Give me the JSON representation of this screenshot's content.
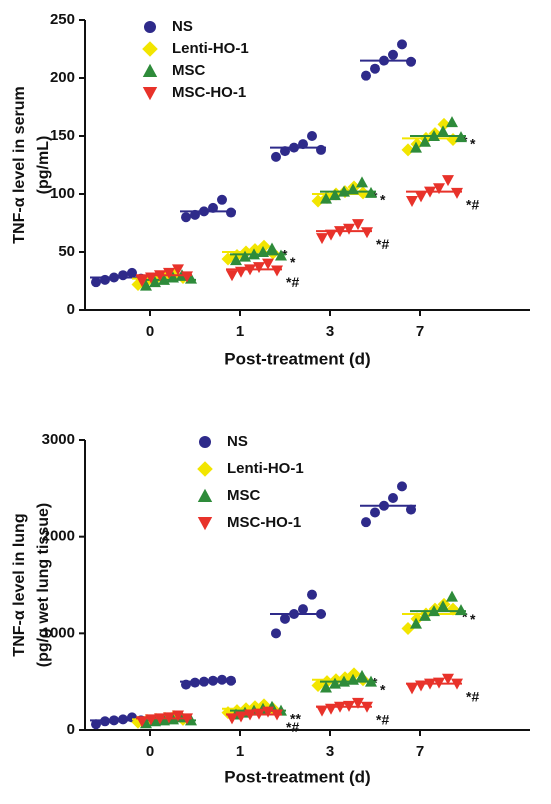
{
  "chart_data": [
    {
      "type": "dot",
      "xlabel": "Post-treatment (d)",
      "ylabel": [
        "TNF-α level in serum",
        "(pg/mL)"
      ],
      "categories": [
        "0",
        "1",
        "3",
        "7"
      ],
      "ylim": [
        0,
        250
      ],
      "yticks": [
        0,
        50,
        100,
        150,
        200,
        250
      ],
      "series": [
        {
          "name": "NS",
          "color": "#2e2a8a",
          "marker": "circle",
          "values": [
            28,
            85,
            140,
            215
          ],
          "points": [
            [
              24,
              26,
              28,
              30,
              32,
              27
            ],
            [
              80,
              82,
              85,
              88,
              95,
              84
            ],
            [
              132,
              137,
              140,
              143,
              150,
              138
            ],
            [
              202,
              208,
              215,
              220,
              229,
              214
            ]
          ],
          "annotations": [
            null,
            null,
            null,
            null
          ]
        },
        {
          "name": "Lenti-HO-1",
          "color": "#f2e500",
          "marker": "diamond",
          "values": [
            27,
            50,
            100,
            148
          ],
          "points": [
            [
              22,
              25,
              27,
              29,
              31,
              28
            ],
            [
              44,
              47,
              50,
              52,
              55,
              49
            ],
            [
              94,
              97,
              100,
              102,
              106,
              101
            ],
            [
              138,
              143,
              148,
              152,
              160,
              147
            ]
          ],
          "annotations": [
            null,
            "*",
            "*",
            "*"
          ]
        },
        {
          "name": "MSC",
          "color": "#2e8b3a",
          "marker": "triangle",
          "values": [
            26,
            48,
            102,
            150
          ],
          "points": [
            [
              21,
              24,
              26,
              28,
              30,
              27
            ],
            [
              43,
              46,
              48,
              50,
              53,
              47
            ],
            [
              96,
              99,
              102,
              104,
              110,
              101
            ],
            [
              140,
              145,
              150,
              154,
              162,
              149
            ]
          ],
          "annotations": [
            null,
            "*",
            "*",
            "*"
          ]
        },
        {
          "name": "MSC-HO-1",
          "color": "#e8322a",
          "marker": "triangle-down",
          "values": [
            30,
            35,
            68,
            102
          ],
          "points": [
            [
              25,
              28,
              30,
              32,
              35,
              29
            ],
            [
              30,
              33,
              35,
              37,
              40,
              34
            ],
            [
              62,
              65,
              68,
              70,
              74,
              67
            ],
            [
              94,
              98,
              102,
              105,
              112,
              101
            ]
          ],
          "annotations": [
            null,
            "*#",
            "*#",
            "*#"
          ]
        }
      ]
    },
    {
      "type": "dot",
      "xlabel": "Post-treatment (d)",
      "ylabel": [
        "TNF-α level in lung",
        "(pg/g wet lung tissue)"
      ],
      "categories": [
        "0",
        "1",
        "3",
        "7"
      ],
      "ylim": [
        0,
        3000
      ],
      "yticks": [
        0,
        1000,
        2000,
        3000
      ],
      "series": [
        {
          "name": "NS",
          "color": "#2e2a8a",
          "marker": "circle",
          "values": [
            100,
            500,
            1200,
            2320
          ],
          "points": [
            [
              60,
              90,
              100,
              110,
              130,
              100
            ],
            [
              470,
              490,
              500,
              510,
              520,
              510
            ],
            [
              1000,
              1150,
              1200,
              1250,
              1400,
              1200
            ],
            [
              2150,
              2250,
              2320,
              2400,
              2520,
              2280
            ]
          ],
          "annotations": [
            null,
            null,
            null,
            null
          ]
        },
        {
          "name": "Lenti-HO-1",
          "color": "#f2e500",
          "marker": "diamond",
          "values": [
            110,
            220,
            520,
            1200
          ],
          "points": [
            [
              80,
              100,
              110,
              120,
              140,
              110
            ],
            [
              180,
              200,
              220,
              240,
              260,
              220
            ],
            [
              460,
              500,
              520,
              540,
              580,
              520
            ],
            [
              1050,
              1150,
              1200,
              1250,
              1300,
              1250
            ]
          ],
          "annotations": [
            null,
            null,
            "*",
            "*"
          ]
        },
        {
          "name": "MSC",
          "color": "#2e8b3a",
          "marker": "triangle",
          "values": [
            100,
            200,
            500,
            1230
          ],
          "points": [
            [
              70,
              90,
              100,
              110,
              130,
              100
            ],
            [
              160,
              180,
              200,
              220,
              240,
              200
            ],
            [
              440,
              480,
              500,
              520,
              560,
              500
            ],
            [
              1100,
              1180,
              1230,
              1280,
              1380,
              1240
            ]
          ],
          "annotations": [
            null,
            "**",
            "*",
            "*"
          ]
        },
        {
          "name": "MSC-HO-1",
          "color": "#e8322a",
          "marker": "triangle-down",
          "values": [
            120,
            160,
            240,
            480
          ],
          "points": [
            [
              90,
              110,
              120,
              130,
              150,
              120
            ],
            [
              120,
              140,
              160,
              170,
              190,
              160
            ],
            [
              200,
              220,
              240,
              250,
              280,
              240
            ],
            [
              430,
              460,
              480,
              490,
              530,
              480
            ]
          ],
          "annotations": [
            null,
            "*#",
            "*#",
            "*#"
          ]
        }
      ]
    }
  ]
}
